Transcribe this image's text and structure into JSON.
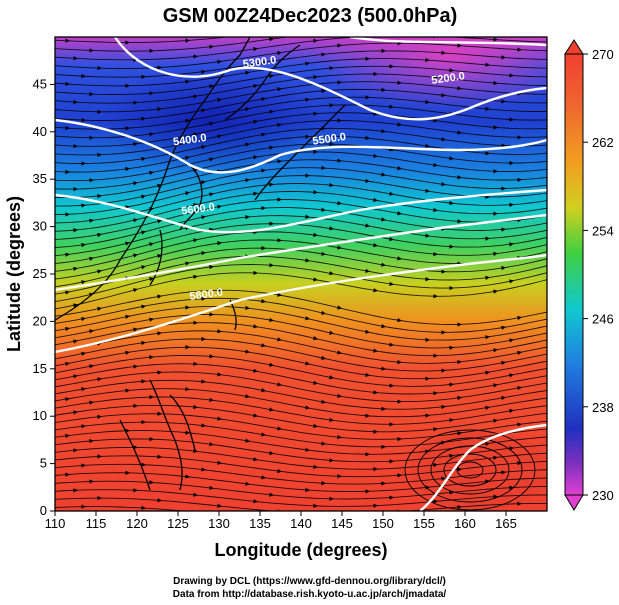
{
  "title": "GSM 00Z24Dec2023 (500.0hPa)",
  "x_axis": {
    "label": "Longitude (degrees)",
    "min": 110,
    "max": 170,
    "ticks": [
      "110",
      "115",
      "120",
      "125",
      "130",
      "135",
      "140",
      "145",
      "150",
      "155",
      "160",
      "165"
    ]
  },
  "y_axis": {
    "label": "Latitude  (degrees)",
    "min": 0,
    "max": 50,
    "ticks": [
      "0",
      "5",
      "10",
      "15",
      "20",
      "25",
      "30",
      "35",
      "40",
      "45"
    ]
  },
  "colorbar": {
    "min": 230,
    "max": 270,
    "labels": [
      "270",
      "262",
      "254",
      "246",
      "238",
      "230"
    ]
  },
  "contours": [
    {
      "label": "5200.0",
      "lon": 158,
      "lat": 45.3
    },
    {
      "label": "5300.0",
      "lon": 135,
      "lat": 47.0
    },
    {
      "label": "5400.0",
      "lon": 126.5,
      "lat": 38.8
    },
    {
      "label": "5500.0",
      "lon": 143.5,
      "lat": 38.9
    },
    {
      "label": "5600.0",
      "lon": 127.5,
      "lat": 31.5
    },
    {
      "label": "5800.0",
      "lon": 128.5,
      "lat": 22.5
    }
  ],
  "credits": {
    "line1": "Drawing by DCL (https://www.gfd-dennou.org/library/dcl/)",
    "line2": "Data from http://database.rish.kyoto-u.ac.jp/arch/jmadata/"
  }
}
